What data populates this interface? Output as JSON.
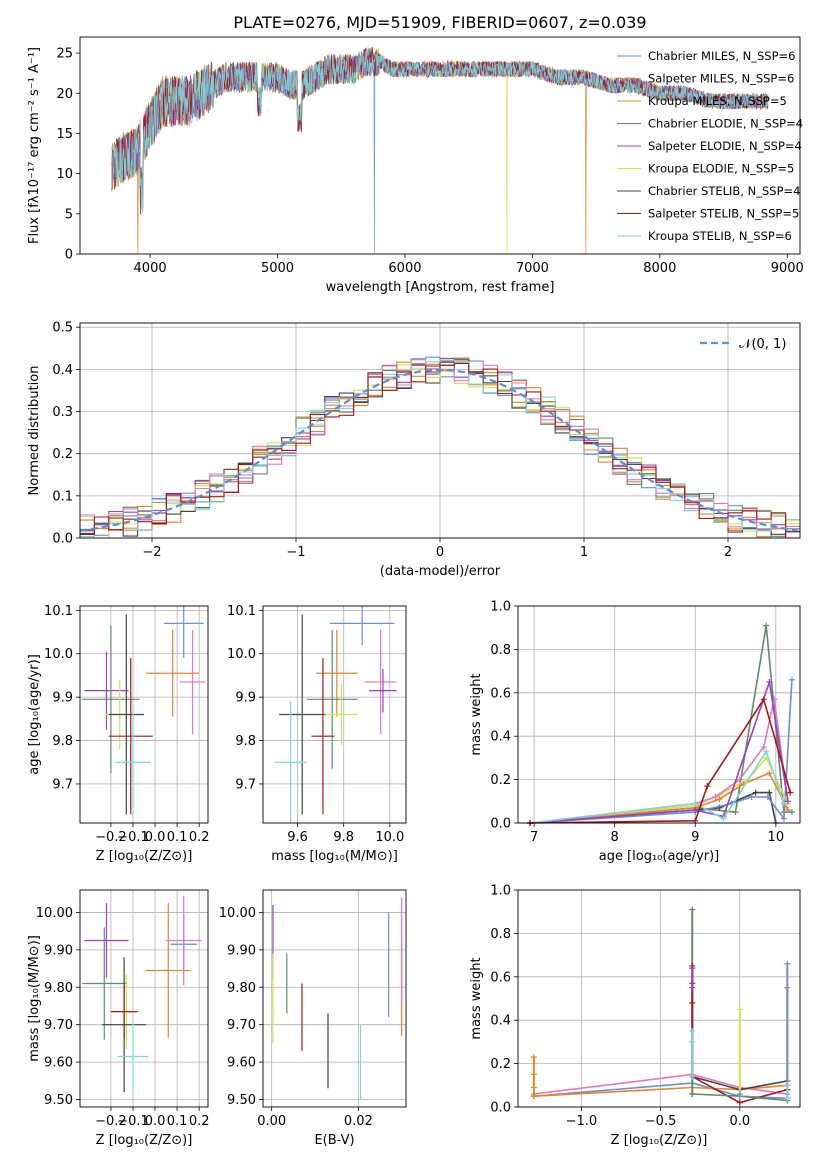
{
  "figure_title": "PLATE=0276, MJD=51909, FIBERID=0607, z=0.039",
  "colors": [
    "#6a8fd8",
    "#e8832a",
    "#cf8f2f",
    "#5e8b6a",
    "#9b3fc4",
    "#d6e34a",
    "#444444",
    "#a51a1a",
    "#7fd6d6"
  ],
  "extra_colors": {
    "pink": "#e377c2",
    "lime": "#c5e852"
  },
  "chart_data": [
    {
      "id": "spectrum",
      "type": "line",
      "xlabel": "wavelength [Angstrom, rest frame]",
      "ylabel": "Flux [fλ10⁻¹⁷ erg cm⁻² s⁻¹ A⁻¹]",
      "xlim": [
        3450,
        9100
      ],
      "ylim": [
        0,
        27
      ],
      "xticks": [
        4000,
        5000,
        6000,
        7000,
        8000,
        9000
      ],
      "yticks": [
        0,
        5,
        10,
        15,
        20,
        25
      ],
      "grid": false,
      "legend_position": "top-right",
      "legend": [
        "Chabrier MILES, N_SSP=6",
        "Salpeter MILES, N_SSP=6",
        "Kroupa MILES, N_SSP=5",
        "Chabrier ELODIE, N_SSP=4",
        "Salpeter ELODIE, N_SSP=4",
        "Kroupa ELODIE, N_SSP=5",
        "Chabrier STELIB, N_SSP=4",
        "Salpeter STELIB, N_SSP=5",
        "Kroupa STELIB, N_SSP=6"
      ],
      "continuum": {
        "x": [
          3700,
          3800,
          3900,
          4000,
          4100,
          4200,
          4300,
          4400,
          4500,
          4600,
          4700,
          4800,
          4900,
          5000,
          5100,
          5200,
          5300,
          5400,
          5500,
          5600,
          5700,
          5800,
          5900,
          6000,
          6200,
          6400,
          6600,
          6800,
          7000,
          7200,
          7400,
          7600,
          7800,
          8000,
          8200,
          8400,
          8600,
          8850
        ],
        "y": [
          11,
          12,
          13,
          16,
          19,
          19,
          19,
          20,
          21,
          22,
          22,
          22,
          22,
          22,
          21,
          21,
          22,
          23,
          23,
          23,
          24,
          24,
          23,
          23,
          23,
          23,
          23,
          23,
          23,
          22,
          22,
          21,
          21,
          20,
          20,
          19,
          19,
          19
        ]
      },
      "dropouts": [
        {
          "x": 3905,
          "series": "Salpeter MILES"
        },
        {
          "x": 5760,
          "series": "Chabrier MILES"
        },
        {
          "x": 6800,
          "series": "Kroupa ELODIE"
        },
        {
          "x": 7420,
          "series": "Salpeter MILES"
        }
      ]
    },
    {
      "id": "residuals",
      "type": "histogram",
      "xlabel": "(data-model)/error",
      "ylabel": "Normed distribution",
      "xlim": [
        -2.5,
        2.5
      ],
      "ylim": [
        0,
        0.51
      ],
      "xticks": [
        -2,
        -1,
        0,
        1,
        2
      ],
      "yticks": [
        0.0,
        0.1,
        0.2,
        0.3,
        0.4,
        0.5
      ],
      "grid": true,
      "legend_position": "top-right",
      "legend": [
        "𝒩(0, 1)"
      ],
      "bin_width": 0.1
    },
    {
      "id": "z_age",
      "type": "scatter-errorbar",
      "xlabel": "Z [log₁₀(Z/Z⊙)]",
      "ylabel": "age  [log₁₀(age/yr)]",
      "xlim": [
        -0.34,
        0.24
      ],
      "ylim": [
        9.61,
        10.11
      ],
      "xticks": [
        -0.2,
        -0.1,
        0.0,
        0.1,
        0.2
      ],
      "yticks": [
        9.7,
        9.8,
        9.9,
        10.0,
        10.1
      ],
      "grid": true,
      "points": [
        {
          "x": 0.13,
          "y": 10.07,
          "xerr": 0.09,
          "yerr": 0.08,
          "c": 0
        },
        {
          "x": 0.08,
          "y": 9.955,
          "xerr": 0.12,
          "yerr": 0.1,
          "c": 1
        },
        {
          "x": 0.17,
          "y": 9.935,
          "xerr": 0.06,
          "yerr": 0.12,
          "c": 9
        },
        {
          "x": -0.22,
          "y": 9.915,
          "xerr": 0.1,
          "yerr": 0.09,
          "c": 4
        },
        {
          "x": -0.2,
          "y": 9.895,
          "xerr": 0.13,
          "yerr": 0.17,
          "c": 3
        },
        {
          "x": -0.16,
          "y": 9.86,
          "xerr": 0.07,
          "yerr": 0.08,
          "c": 10
        },
        {
          "x": -0.13,
          "y": 9.86,
          "xerr": 0.08,
          "yerr": 0.23,
          "c": 6
        },
        {
          "x": -0.11,
          "y": 9.81,
          "xerr": 0.1,
          "yerr": 0.18,
          "c": 7
        },
        {
          "x": -0.1,
          "y": 9.75,
          "xerr": 0.08,
          "yerr": 0.13,
          "c": 8
        }
      ]
    },
    {
      "id": "mass_age",
      "type": "scatter-errorbar",
      "xlabel": "mass [log₁₀(M/M⊙)]",
      "ylabel": "",
      "xlim": [
        9.45,
        10.07
      ],
      "ylim": [
        9.61,
        10.11
      ],
      "xticks": [
        9.6,
        9.8,
        10.0
      ],
      "yticks": [
        9.7,
        9.8,
        9.9,
        10.0,
        10.1
      ],
      "grid": true,
      "points": [
        {
          "x": 9.88,
          "y": 10.07,
          "xerr": 0.14,
          "yerr": 0.05,
          "c": 0
        },
        {
          "x": 9.77,
          "y": 9.955,
          "xerr": 0.09,
          "yerr": 0.1,
          "c": 1
        },
        {
          "x": 9.96,
          "y": 9.935,
          "xerr": 0.07,
          "yerr": 0.12,
          "c": 9
        },
        {
          "x": 9.97,
          "y": 9.915,
          "xerr": 0.06,
          "yerr": 0.05,
          "c": 4
        },
        {
          "x": 9.75,
          "y": 9.895,
          "xerr": 0.11,
          "yerr": 0.16,
          "c": 3
        },
        {
          "x": 9.79,
          "y": 9.86,
          "xerr": 0.07,
          "yerr": 0.07,
          "c": 10
        },
        {
          "x": 9.62,
          "y": 9.86,
          "xerr": 0.1,
          "yerr": 0.23,
          "c": 6
        },
        {
          "x": 9.71,
          "y": 9.81,
          "xerr": 0.05,
          "yerr": 0.18,
          "c": 7
        },
        {
          "x": 9.57,
          "y": 9.75,
          "xerr": 0.07,
          "yerr": 0.14,
          "c": 8
        }
      ]
    },
    {
      "id": "age_weight",
      "type": "line",
      "xlabel": "age  [log₁₀(age/yr)]",
      "ylabel": "mass weight",
      "xlim": [
        6.8,
        10.3
      ],
      "ylim": [
        0,
        1.0
      ],
      "xticks": [
        7,
        8,
        9,
        10
      ],
      "yticks": [
        0.0,
        0.2,
        0.4,
        0.6,
        0.8,
        1.0
      ],
      "grid": true,
      "series": [
        {
          "c": 3,
          "x": [
            6.95,
            9.0,
            9.5,
            9.88,
            10.1,
            10.2
          ],
          "y": [
            0.0,
            0.07,
            0.05,
            0.91,
            0.05,
            0.05
          ]
        },
        {
          "c": 6,
          "x": [
            6.95,
            9.0,
            9.3,
            9.75,
            9.92,
            10.0
          ],
          "y": [
            0.0,
            0.06,
            0.07,
            0.14,
            0.14,
            0.0
          ]
        },
        {
          "c": 0,
          "x": [
            6.95,
            9.0,
            9.45,
            9.7,
            9.9,
            10.1,
            10.2
          ],
          "y": [
            0.0,
            0.05,
            0.09,
            0.12,
            0.12,
            0.02,
            0.66
          ]
        },
        {
          "c": 5,
          "x": [
            6.95,
            9.0,
            9.3,
            9.65,
            9.88,
            10.15
          ],
          "y": [
            0.0,
            0.08,
            0.13,
            0.2,
            0.3,
            0.09
          ]
        },
        {
          "c": 9,
          "x": [
            6.95,
            9.0,
            9.25,
            9.55,
            9.85,
            9.98,
            10.15
          ],
          "y": [
            0.0,
            0.09,
            0.12,
            0.2,
            0.35,
            0.57,
            0.1
          ]
        },
        {
          "c": 1,
          "x": [
            6.95,
            9.0,
            9.3,
            9.6,
            9.92,
            10.15
          ],
          "y": [
            0.0,
            0.07,
            0.11,
            0.18,
            0.23,
            0.06
          ]
        },
        {
          "c": 4,
          "x": [
            6.95,
            9.0,
            9.35,
            9.92,
            10.15
          ],
          "y": [
            0.0,
            0.06,
            0.03,
            0.65,
            0.1
          ]
        },
        {
          "c": 8,
          "x": [
            6.95,
            9.0,
            9.35,
            9.88,
            10.1
          ],
          "y": [
            0.0,
            0.09,
            0.02,
            0.33,
            0.09
          ]
        },
        {
          "c": 7,
          "x": [
            6.95,
            9.0,
            9.15,
            9.85,
            10.18
          ],
          "y": [
            0.0,
            0.01,
            0.17,
            0.57,
            0.14
          ]
        }
      ]
    },
    {
      "id": "z_mass",
      "type": "scatter-errorbar",
      "xlabel": "Z [log₁₀(Z/Z⊙)]",
      "ylabel": "mass [log₁₀(M/M⊙)]",
      "xlim": [
        -0.34,
        0.24
      ],
      "ylim": [
        9.48,
        10.06
      ],
      "xticks": [
        -0.2,
        -0.1,
        0.0,
        0.1,
        0.2
      ],
      "yticks": [
        9.5,
        9.6,
        9.7,
        9.8,
        9.9,
        10.0
      ],
      "grid": true,
      "points": [
        {
          "x": 0.13,
          "y": 9.915,
          "xerr": 0.06,
          "yerr": 0.08,
          "c": 0
        },
        {
          "x": 0.06,
          "y": 9.845,
          "xerr": 0.1,
          "yerr": 0.18,
          "c": 1
        },
        {
          "x": 0.13,
          "y": 9.925,
          "xerr": 0.08,
          "yerr": 0.12,
          "c": 9
        },
        {
          "x": -0.22,
          "y": 9.925,
          "xerr": 0.1,
          "yerr": 0.1,
          "c": 4
        },
        {
          "x": -0.23,
          "y": 9.81,
          "xerr": 0.1,
          "yerr": 0.15,
          "c": 3
        },
        {
          "x": -0.13,
          "y": 9.735,
          "xerr": 0.06,
          "yerr": 0.1,
          "c": 10
        },
        {
          "x": -0.14,
          "y": 9.7,
          "xerr": 0.1,
          "yerr": 0.18,
          "c": 6
        },
        {
          "x": -0.14,
          "y": 9.735,
          "xerr": 0.06,
          "yerr": 0.07,
          "c": 7
        },
        {
          "x": -0.1,
          "y": 9.615,
          "xerr": 0.07,
          "yerr": 0.1,
          "c": 8
        }
      ]
    },
    {
      "id": "ebv_mass",
      "type": "scatter-errorbar",
      "xlabel": "E(B-V)",
      "ylabel": "",
      "xlim": [
        -0.002,
        0.031
      ],
      "ylim": [
        9.48,
        10.06
      ],
      "xticks": [
        0.0,
        0.02
      ],
      "yticks": [
        9.5,
        9.6,
        9.7,
        9.8,
        9.9,
        10.0
      ],
      "grid": true,
      "points": [
        {
          "x": 0.027,
          "y": 9.86,
          "xerr": 0,
          "yerr": 0.14,
          "c": 0
        },
        {
          "x": 0.03,
          "y": 9.8,
          "xerr": 0,
          "yerr": 0.13,
          "c": 1
        },
        {
          "x": 0.03,
          "y": 9.9,
          "xerr": 0,
          "yerr": 0.14,
          "c": 9
        },
        {
          "x": 0.0003,
          "y": 9.92,
          "xerr": 0,
          "yerr": 0.1,
          "c": 4
        },
        {
          "x": 0.0035,
          "y": 9.81,
          "xerr": 0,
          "yerr": 0.08,
          "c": 3
        },
        {
          "x": 0.0003,
          "y": 9.77,
          "xerr": 0,
          "yerr": 0.12,
          "c": 10
        },
        {
          "x": 0.013,
          "y": 9.63,
          "xerr": 0,
          "yerr": 0.1,
          "c": 6
        },
        {
          "x": 0.007,
          "y": 9.72,
          "xerr": 0,
          "yerr": 0.09,
          "c": 7
        },
        {
          "x": 0.0205,
          "y": 9.6,
          "xerr": 0,
          "yerr": 0.1,
          "c": 8
        }
      ]
    },
    {
      "id": "z_weight",
      "type": "line",
      "xlabel": "Z [log₁₀(Z/Z⊙)]",
      "ylabel": "mass weight",
      "xlim": [
        -1.4,
        0.38
      ],
      "ylim": [
        0,
        1.0
      ],
      "xticks": [
        -1.0,
        -0.5,
        0.0
      ],
      "yticks": [
        0.0,
        0.2,
        0.4,
        0.6,
        0.8,
        1.0
      ],
      "grid": true,
      "series": [
        {
          "c": 9,
          "x": [
            -1.3,
            -0.3,
            0.0,
            0.3
          ],
          "y": [
            0.06,
            0.15,
            0.09,
            0.06
          ]
        },
        {
          "c": 0,
          "x": [
            -1.3,
            -0.3,
            0.0,
            0.3
          ],
          "y": [
            0.05,
            0.11,
            0.05,
            0.04
          ]
        },
        {
          "c": 1,
          "x": [
            -1.3,
            -0.3,
            0.0,
            0.3
          ],
          "y": [
            0.05,
            0.09,
            0.08,
            0.1
          ]
        },
        {
          "c": 6,
          "x": [
            -0.3,
            0.0,
            0.3
          ],
          "y": [
            0.14,
            0.08,
            0.12
          ]
        },
        {
          "c": 7,
          "x": [
            -0.3,
            0.0,
            0.3
          ],
          "y": [
            0.14,
            0.02,
            0.08
          ]
        },
        {
          "c": 3,
          "x": [
            -0.3,
            0.0,
            0.3
          ],
          "y": [
            0.06,
            0.05,
            0.03
          ]
        }
      ],
      "stacks": [
        {
          "x": -1.3,
          "c": 1,
          "y": [
            0.05,
            0.09,
            0.15,
            0.23
          ]
        },
        {
          "x": -0.3,
          "c": 3,
          "y": [
            0.06,
            0.91
          ]
        },
        {
          "x": -0.3,
          "c": 7,
          "y": [
            0.14,
            0.48,
            0.57,
            0.65
          ]
        },
        {
          "x": -0.3,
          "c": 8,
          "y": [
            0.14,
            0.3,
            0.35
          ]
        },
        {
          "x": -0.3,
          "c": 4,
          "y": [
            0.55,
            0.64
          ]
        },
        {
          "x": 0.0,
          "c": 5,
          "y": [
            0.05,
            0.45
          ]
        },
        {
          "x": 0.0,
          "c": 0,
          "y": [
            0.05,
            0.06
          ]
        },
        {
          "x": 0.3,
          "c": 1,
          "y": [
            0.1,
            0.55
          ]
        },
        {
          "x": 0.3,
          "c": 0,
          "y": [
            0.04,
            0.66
          ]
        },
        {
          "x": 0.3,
          "c": 8,
          "y": [
            0.04,
            0.1
          ]
        }
      ]
    }
  ]
}
